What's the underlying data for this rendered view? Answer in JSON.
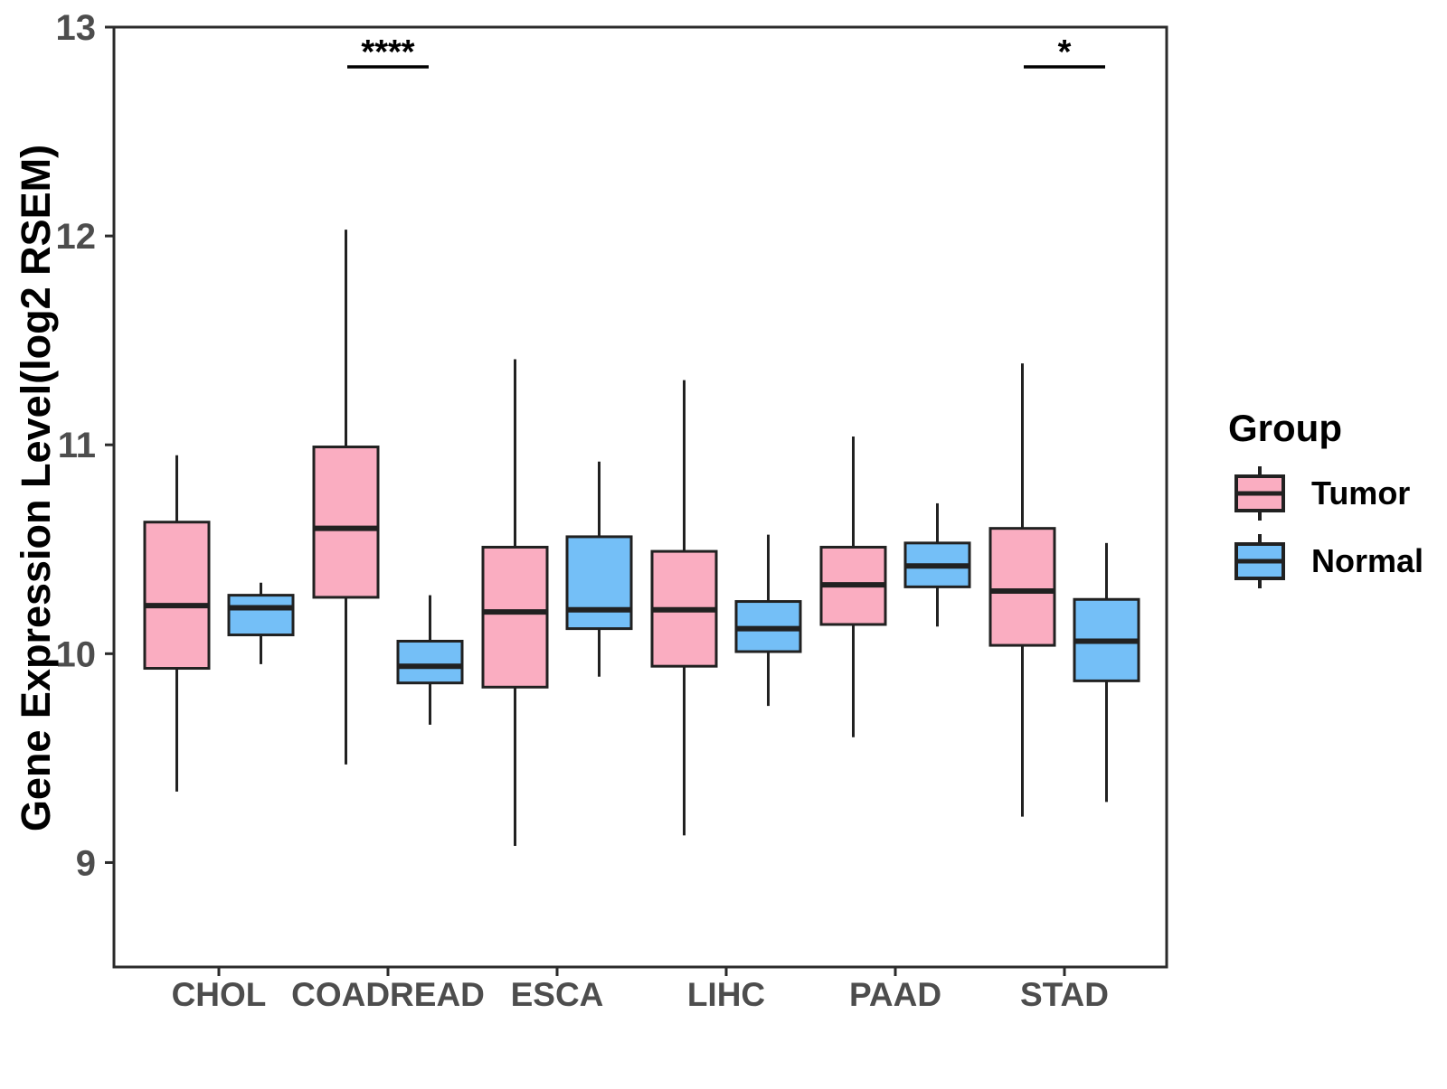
{
  "chart_data": {
    "type": "boxplot",
    "title": "",
    "xlabel": "",
    "ylabel": "Gene Expression Level(log2 RSEM)",
    "categories": [
      "CHOL",
      "COADREAD",
      "ESCA",
      "LIHC",
      "PAAD",
      "STAD"
    ],
    "y_ticks": [
      9,
      10,
      11,
      12,
      13
    ],
    "y_tick_labels": [
      "9",
      "10",
      "11",
      "12",
      "13"
    ],
    "ylim": [
      8.5,
      13.0
    ],
    "grid": false,
    "legend": {
      "title": "Group",
      "position": "right"
    },
    "series": [
      {
        "name": "Tumor",
        "fill": "#FAADC1",
        "boxes": [
          {
            "category": "CHOL",
            "min": 9.34,
            "q1": 9.93,
            "median": 10.23,
            "q3": 10.63,
            "max": 10.95
          },
          {
            "category": "COADREAD",
            "min": 9.47,
            "q1": 10.27,
            "median": 10.6,
            "q3": 10.99,
            "max": 12.03
          },
          {
            "category": "ESCA",
            "min": 9.08,
            "q1": 9.84,
            "median": 10.2,
            "q3": 10.51,
            "max": 11.41
          },
          {
            "category": "LIHC",
            "min": 9.13,
            "q1": 9.94,
            "median": 10.21,
            "q3": 10.49,
            "max": 11.31
          },
          {
            "category": "PAAD",
            "min": 9.6,
            "q1": 10.14,
            "median": 10.33,
            "q3": 10.51,
            "max": 11.04
          },
          {
            "category": "STAD",
            "min": 9.22,
            "q1": 10.04,
            "median": 10.3,
            "q3": 10.6,
            "max": 11.39
          }
        ]
      },
      {
        "name": "Normal",
        "fill": "#74BFF7",
        "boxes": [
          {
            "category": "CHOL",
            "min": 9.95,
            "q1": 10.09,
            "median": 10.22,
            "q3": 10.28,
            "max": 10.34
          },
          {
            "category": "COADREAD",
            "min": 9.66,
            "q1": 9.86,
            "median": 9.94,
            "q3": 10.06,
            "max": 10.28
          },
          {
            "category": "ESCA",
            "min": 9.89,
            "q1": 10.12,
            "median": 10.21,
            "q3": 10.56,
            "max": 10.92
          },
          {
            "category": "LIHC",
            "min": 9.75,
            "q1": 10.01,
            "median": 10.12,
            "q3": 10.25,
            "max": 10.57
          },
          {
            "category": "PAAD",
            "min": 10.13,
            "q1": 10.32,
            "median": 10.42,
            "q3": 10.53,
            "max": 10.72
          },
          {
            "category": "STAD",
            "min": 9.29,
            "q1": 9.87,
            "median": 10.06,
            "q3": 10.26,
            "max": 10.53
          }
        ]
      }
    ],
    "significance": [
      {
        "category": "COADREAD",
        "label": "****"
      },
      {
        "category": "STAD",
        "label": "*"
      }
    ]
  },
  "colors": {
    "tumor_fill": "#FAADC1",
    "normal_fill": "#74BFF7",
    "box_border": "#212121",
    "axis": "#2B2B2B",
    "tick_text": "#4D4D4D",
    "title_text": "#000000",
    "significance": "#000000",
    "background": "#FFFFFF"
  }
}
